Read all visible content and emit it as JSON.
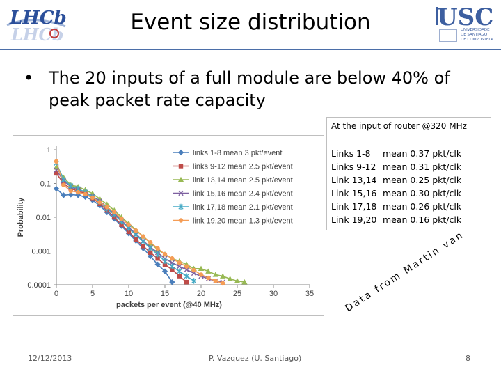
{
  "slide": {
    "title": "Event size distribution",
    "bullet": "The 20 inputs of a full module are below 40% of peak packet rate capacity",
    "lhcb_logo_text": "LHCb",
    "usc_logo_text": "USC",
    "usc_logo_subtext": [
      "UNIVERSIDADE",
      "DE SANTIAGO",
      "DE COMPOSTELA"
    ],
    "credit": "Data from Martin van Beuzekom"
  },
  "info_box": {
    "header": "At the input of router @320 MHz",
    "rows": [
      {
        "label": "Links 1-8",
        "value": "mean 0.37 pkt/clk"
      },
      {
        "label": "Links 9-12",
        "value": "mean 0.31 pkt/clk"
      },
      {
        "label": "Link 13,14",
        "value": "mean 0.25 pkt/clk"
      },
      {
        "label": "Link 15,16",
        "value": "mean 0.30 pkt/clk"
      },
      {
        "label": "Link 17,18",
        "value": "mean 0.26 pkt/clk"
      },
      {
        "label": "Link 19,20",
        "value": "mean 0.16 pkt/clk"
      }
    ]
  },
  "footer": {
    "date": "12/12/2013",
    "author": "P. Vazquez (U. Santiago)",
    "page": "8"
  },
  "chart_data": {
    "type": "line",
    "xlabel": "packets per event (@40 MHz)",
    "ylabel": "Probability",
    "xlim": [
      0,
      35
    ],
    "ylim": [
      0.0001,
      1
    ],
    "yscale": "log",
    "x_ticks": [
      0,
      5,
      10,
      15,
      20,
      25,
      30,
      35
    ],
    "y_ticks": [
      {
        "value": 1,
        "label": "1"
      },
      {
        "value": 0.1,
        "label": "0.1"
      },
      {
        "value": 0.01,
        "label": "0.01"
      },
      {
        "value": 0.001,
        "label": "0.001"
      },
      {
        "value": 0.0001,
        "label": "0.0001"
      }
    ],
    "legend_position": "top-right",
    "grid": false,
    "series": [
      {
        "name": "links 1-8 mean 3 pkt/event",
        "color": "#4a7ebb",
        "marker": "diamond",
        "points": [
          [
            0,
            0.07
          ],
          [
            1,
            0.045
          ],
          [
            2,
            0.047
          ],
          [
            3,
            0.045
          ],
          [
            4,
            0.04
          ],
          [
            5,
            0.032
          ],
          [
            6,
            0.022
          ],
          [
            7,
            0.014
          ],
          [
            8,
            0.009
          ],
          [
            9,
            0.0055
          ],
          [
            10,
            0.0033
          ],
          [
            11,
            0.002
          ],
          [
            12,
            0.0012
          ],
          [
            13,
            0.0007
          ],
          [
            14,
            0.0004
          ],
          [
            15,
            0.00025
          ],
          [
            16,
            0.00012
          ]
        ]
      },
      {
        "name": "links 9-12 mean 2.5 pkt/event",
        "color": "#be4b48",
        "marker": "square",
        "points": [
          [
            0,
            0.2
          ],
          [
            1,
            0.1
          ],
          [
            2,
            0.07
          ],
          [
            3,
            0.06
          ],
          [
            4,
            0.05
          ],
          [
            5,
            0.037
          ],
          [
            6,
            0.025
          ],
          [
            7,
            0.016
          ],
          [
            8,
            0.01
          ],
          [
            9,
            0.006
          ],
          [
            10,
            0.0037
          ],
          [
            11,
            0.0022
          ],
          [
            12,
            0.0014
          ],
          [
            13,
            0.0009
          ],
          [
            14,
            0.0006
          ],
          [
            15,
            0.0004
          ],
          [
            16,
            0.00028
          ],
          [
            17,
            0.00018
          ],
          [
            18,
            0.00012
          ]
        ]
      },
      {
        "name": "link 13,14 mean 2.5 pkt/event",
        "color": "#98b954",
        "marker": "triangle",
        "points": [
          [
            0,
            0.3
          ],
          [
            1,
            0.15
          ],
          [
            2,
            0.09
          ],
          [
            3,
            0.08
          ],
          [
            4,
            0.065
          ],
          [
            5,
            0.05
          ],
          [
            6,
            0.035
          ],
          [
            7,
            0.024
          ],
          [
            8,
            0.016
          ],
          [
            9,
            0.01
          ],
          [
            10,
            0.0065
          ],
          [
            11,
            0.0042
          ],
          [
            12,
            0.0027
          ],
          [
            13,
            0.0017
          ],
          [
            14,
            0.0011
          ],
          [
            15,
            0.0008
          ],
          [
            16,
            0.0006
          ],
          [
            17,
            0.0005
          ],
          [
            18,
            0.0004
          ],
          [
            19,
            0.0003
          ],
          [
            20,
            0.0003
          ],
          [
            21,
            0.00025
          ],
          [
            22,
            0.0002
          ],
          [
            23,
            0.00018
          ],
          [
            24,
            0.00015
          ],
          [
            25,
            0.00013
          ],
          [
            26,
            0.00012
          ]
        ]
      },
      {
        "name": "link 15,16 mean 2.4 pkt/event",
        "color": "#7d60a0",
        "marker": "x",
        "points": [
          [
            0,
            0.25
          ],
          [
            1,
            0.12
          ],
          [
            2,
            0.08
          ],
          [
            3,
            0.065
          ],
          [
            4,
            0.055
          ],
          [
            5,
            0.042
          ],
          [
            6,
            0.03
          ],
          [
            7,
            0.02
          ],
          [
            8,
            0.013
          ],
          [
            9,
            0.008
          ],
          [
            10,
            0.005
          ],
          [
            11,
            0.0032
          ],
          [
            12,
            0.002
          ],
          [
            13,
            0.0013
          ],
          [
            14,
            0.0009
          ],
          [
            15,
            0.0006
          ],
          [
            16,
            0.00045
          ],
          [
            17,
            0.00035
          ],
          [
            18,
            0.00028
          ],
          [
            19,
            0.00022
          ],
          [
            20,
            0.00018
          ],
          [
            21,
            0.00015
          ],
          [
            22,
            0.00013
          ],
          [
            23,
            0.00012
          ]
        ]
      },
      {
        "name": "link 17,18 mean 2.1 pkt/event",
        "color": "#46aac5",
        "marker": "star",
        "points": [
          [
            0,
            0.4
          ],
          [
            1,
            0.13
          ],
          [
            2,
            0.085
          ],
          [
            3,
            0.07
          ],
          [
            4,
            0.055
          ],
          [
            5,
            0.04
          ],
          [
            6,
            0.028
          ],
          [
            7,
            0.018
          ],
          [
            8,
            0.012
          ],
          [
            9,
            0.0075
          ],
          [
            10,
            0.0047
          ],
          [
            11,
            0.003
          ],
          [
            12,
            0.0019
          ],
          [
            13,
            0.0012
          ],
          [
            14,
            0.0008
          ],
          [
            15,
            0.0005
          ],
          [
            16,
            0.00035
          ],
          [
            17,
            0.00025
          ],
          [
            18,
            0.00018
          ],
          [
            19,
            0.00013
          ]
        ]
      },
      {
        "name": "link 19,20 mean 1.3 pkt/event",
        "color": "#f59d56",
        "marker": "circle",
        "points": [
          [
            0,
            0.45
          ],
          [
            1,
            0.09
          ],
          [
            2,
            0.06
          ],
          [
            3,
            0.055
          ],
          [
            4,
            0.048
          ],
          [
            5,
            0.038
          ],
          [
            6,
            0.028
          ],
          [
            7,
            0.02
          ],
          [
            8,
            0.014
          ],
          [
            9,
            0.009
          ],
          [
            10,
            0.006
          ],
          [
            11,
            0.004
          ],
          [
            12,
            0.0027
          ],
          [
            13,
            0.0018
          ],
          [
            14,
            0.0012
          ],
          [
            15,
            0.0008
          ],
          [
            16,
            0.0006
          ],
          [
            17,
            0.00045
          ],
          [
            18,
            0.00035
          ],
          [
            19,
            0.00027
          ],
          [
            20,
            0.0002
          ],
          [
            21,
            0.00016
          ],
          [
            22,
            0.00013
          ],
          [
            23,
            0.00011
          ]
        ]
      }
    ]
  }
}
